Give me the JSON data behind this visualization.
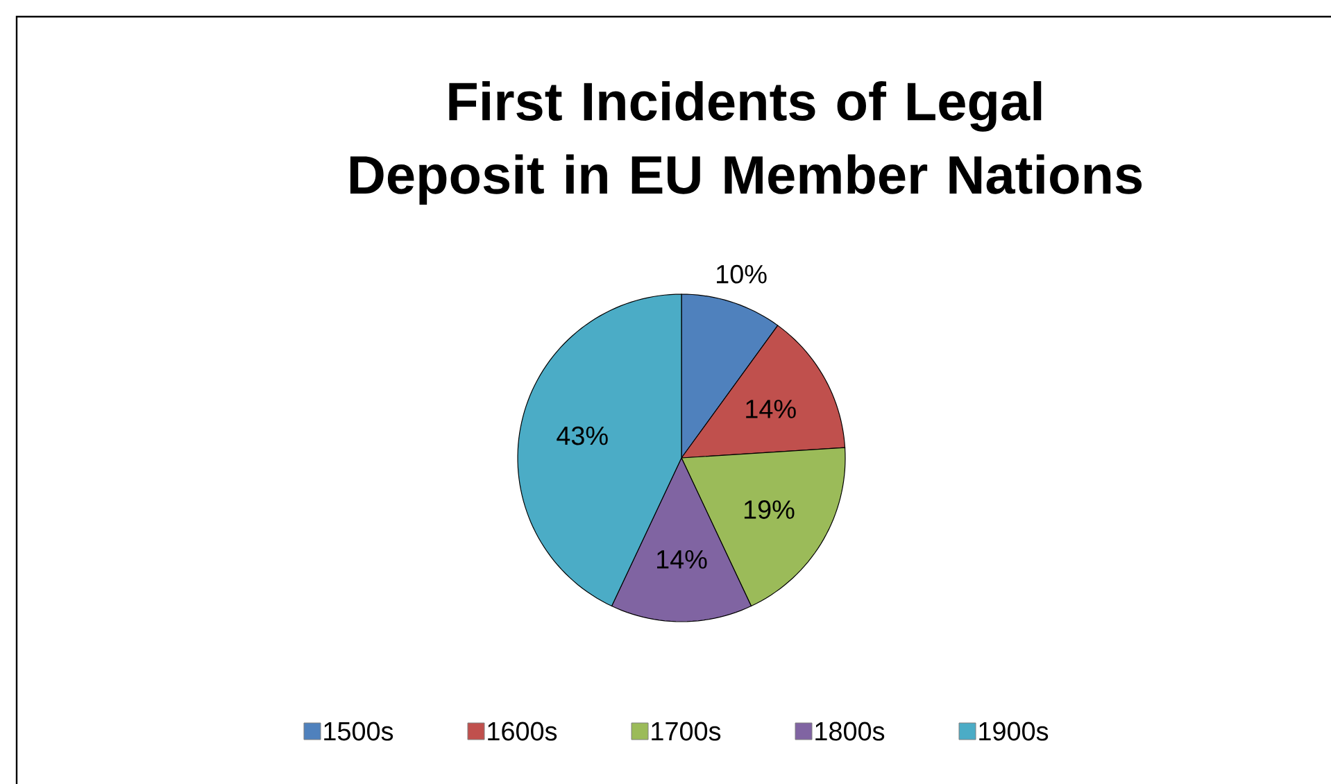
{
  "chart_data": {
    "type": "pie",
    "title": "First Incidents of Legal Deposit in EU Member Nations",
    "categories": [
      "1500s",
      "1600s",
      "1700s",
      "1800s",
      "1900s"
    ],
    "values": [
      10,
      14,
      19,
      14,
      43
    ],
    "colors": [
      "#4f81bd",
      "#c0504d",
      "#9bbb59",
      "#8064a2",
      "#4bacc6"
    ],
    "value_labels": [
      "10%",
      "14%",
      "19%",
      "14%",
      "43%"
    ],
    "legend": "bottom"
  }
}
